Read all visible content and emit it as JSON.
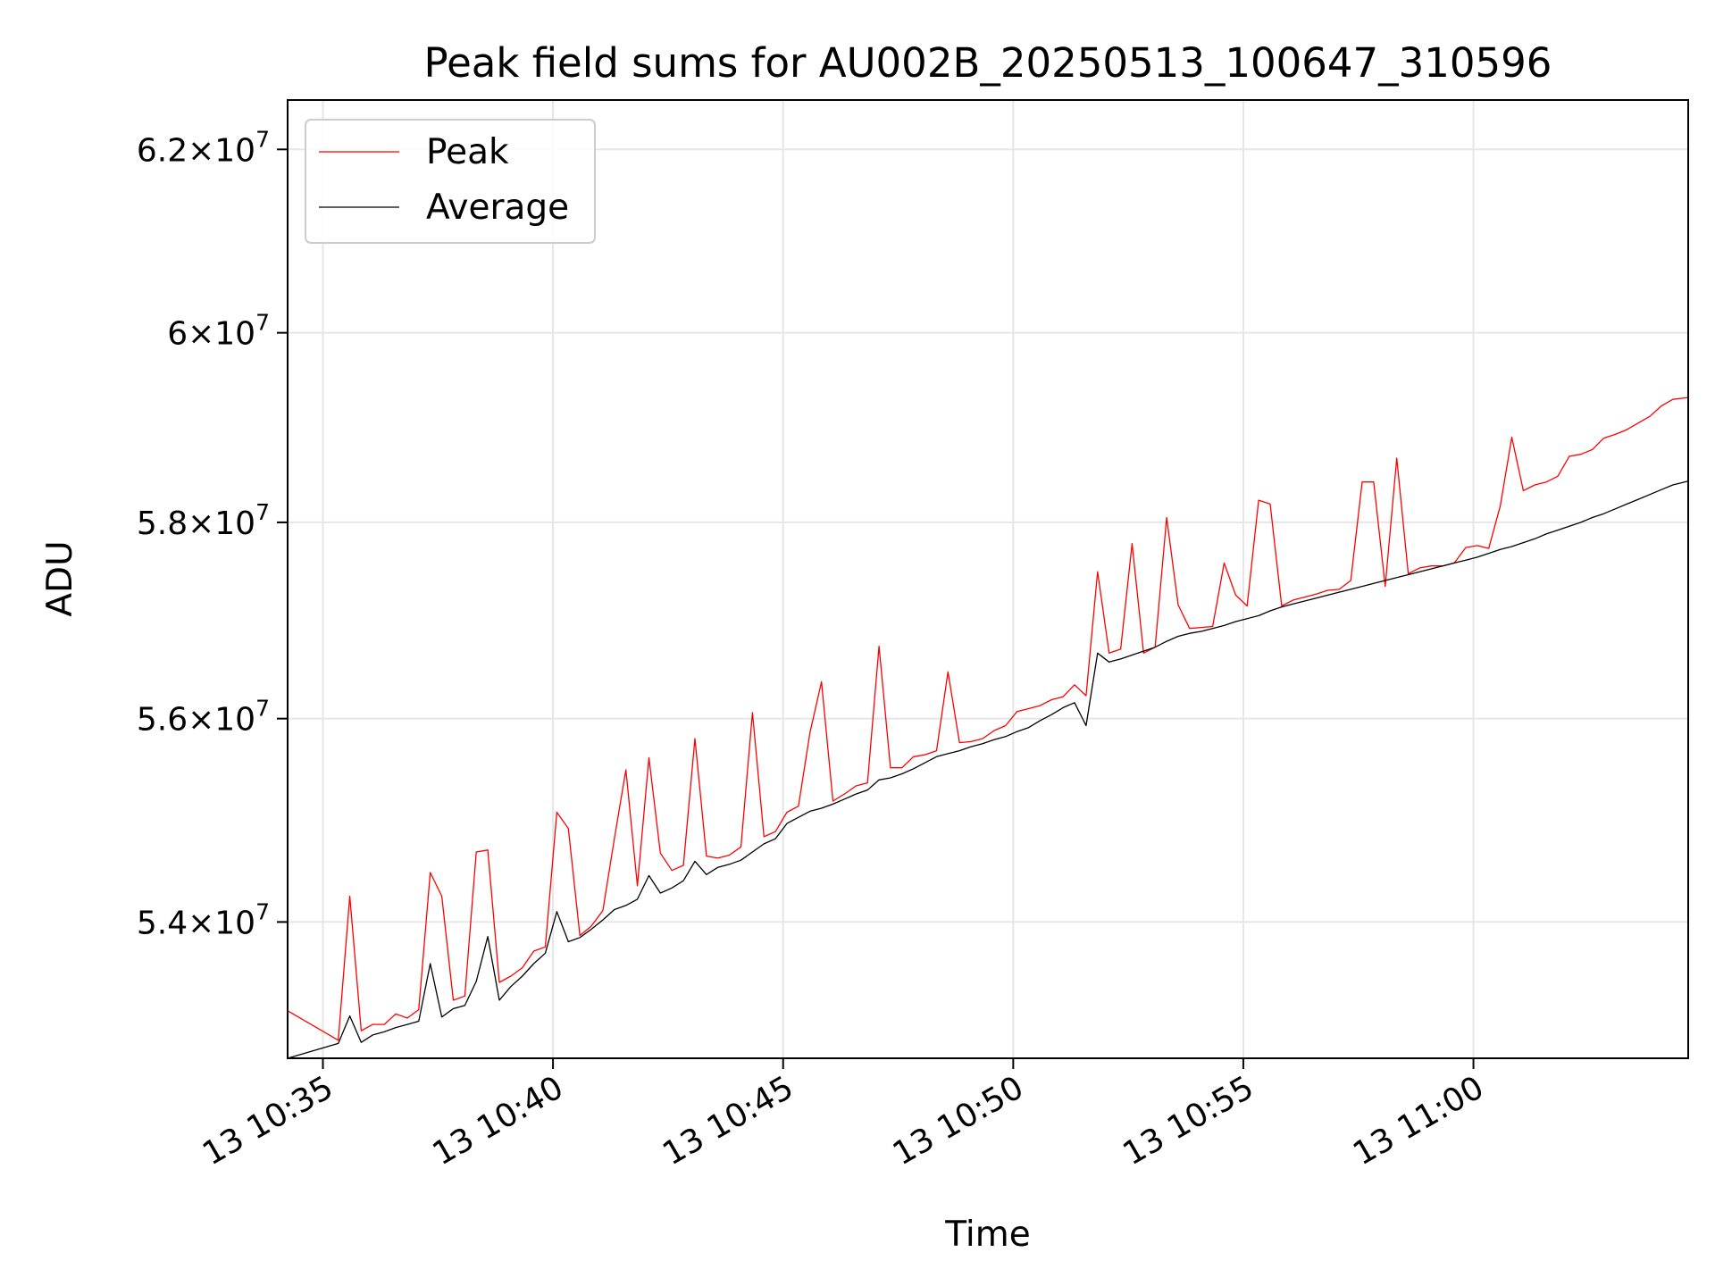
{
  "chart_data": {
    "type": "line",
    "title": "Peak field sums for AU002B_20250513_100647_310596",
    "xlabel": "Time",
    "ylabel": "ADU",
    "xlim": [
      "10:34:14",
      "11:04:40"
    ],
    "ylim": [
      52700000,
      62550000
    ],
    "x_ticks": [
      {
        "t": "10:35:00",
        "label": "13 10:35"
      },
      {
        "t": "10:40:00",
        "label": "13 10:40"
      },
      {
        "t": "10:45:00",
        "label": "13 10:45"
      },
      {
        "t": "10:50:00",
        "label": "13 10:50"
      },
      {
        "t": "10:55:00",
        "label": "13 10:55"
      },
      {
        "t": "11:00:00",
        "label": "13 11:00"
      }
    ],
    "y_ticks": [
      {
        "value": 54000000,
        "mantissa": "5.4",
        "base": "10",
        "exp": "7"
      },
      {
        "value": 56000000,
        "mantissa": "5.6",
        "base": "10",
        "exp": "7"
      },
      {
        "value": 58000000,
        "mantissa": "5.8",
        "base": "10",
        "exp": "7"
      },
      {
        "value": 60000000,
        "mantissa": "6",
        "base": "10",
        "exp": "7"
      },
      {
        "value": 62000000,
        "mantissa": "6.2",
        "base": "10",
        "exp": "7"
      }
    ],
    "y_scale": "log",
    "grid": true,
    "legend_position": "upper-left",
    "series": [
      {
        "name": "Peak",
        "color": "#ff0000",
        "points": [
          [
            "10:34:14",
            53150000
          ],
          [
            "10:35:20",
            52870000
          ],
          [
            "10:35:35",
            54250000
          ],
          [
            "10:35:50",
            52960000
          ],
          [
            "10:36:05",
            53020000
          ],
          [
            "10:36:20",
            53020000
          ],
          [
            "10:36:35",
            53120000
          ],
          [
            "10:36:50",
            53080000
          ],
          [
            "10:37:05",
            53160000
          ],
          [
            "10:37:20",
            54480000
          ],
          [
            "10:37:35",
            54250000
          ],
          [
            "10:37:50",
            53250000
          ],
          [
            "10:38:05",
            53290000
          ],
          [
            "10:38:20",
            54680000
          ],
          [
            "10:38:35",
            54700000
          ],
          [
            "10:38:50",
            53420000
          ],
          [
            "10:39:05",
            53480000
          ],
          [
            "10:39:20",
            53560000
          ],
          [
            "10:39:35",
            53720000
          ],
          [
            "10:39:50",
            53760000
          ],
          [
            "10:40:05",
            55070000
          ],
          [
            "10:40:20",
            54910000
          ],
          [
            "10:40:35",
            53870000
          ],
          [
            "10:40:50",
            53960000
          ],
          [
            "10:41:05",
            54110000
          ],
          [
            "10:41:20",
            54810000
          ],
          [
            "10:41:35",
            55490000
          ],
          [
            "10:41:50",
            54350000
          ],
          [
            "10:42:05",
            55610000
          ],
          [
            "10:42:20",
            54670000
          ],
          [
            "10:42:35",
            54500000
          ],
          [
            "10:42:50",
            54550000
          ],
          [
            "10:43:05",
            55800000
          ],
          [
            "10:43:20",
            54640000
          ],
          [
            "10:43:35",
            54620000
          ],
          [
            "10:43:50",
            54650000
          ],
          [
            "10:44:05",
            54730000
          ],
          [
            "10:44:20",
            56060000
          ],
          [
            "10:44:35",
            54830000
          ],
          [
            "10:44:50",
            54880000
          ],
          [
            "10:45:05",
            55070000
          ],
          [
            "10:45:20",
            55130000
          ],
          [
            "10:45:35",
            55860000
          ],
          [
            "10:45:50",
            56370000
          ],
          [
            "10:46:05",
            55180000
          ],
          [
            "10:46:20",
            55250000
          ],
          [
            "10:46:35",
            55330000
          ],
          [
            "10:46:50",
            55360000
          ],
          [
            "10:47:05",
            56730000
          ],
          [
            "10:47:20",
            55510000
          ],
          [
            "10:47:35",
            55510000
          ],
          [
            "10:47:50",
            55620000
          ],
          [
            "10:48:05",
            55640000
          ],
          [
            "10:48:20",
            55680000
          ],
          [
            "10:48:35",
            56470000
          ],
          [
            "10:48:50",
            55760000
          ],
          [
            "10:49:05",
            55770000
          ],
          [
            "10:49:20",
            55800000
          ],
          [
            "10:49:35",
            55880000
          ],
          [
            "10:49:50",
            55930000
          ],
          [
            "10:50:05",
            56070000
          ],
          [
            "10:50:20",
            56100000
          ],
          [
            "10:50:35",
            56130000
          ],
          [
            "10:50:50",
            56190000
          ],
          [
            "10:51:05",
            56220000
          ],
          [
            "10:51:20",
            56340000
          ],
          [
            "10:51:35",
            56230000
          ],
          [
            "10:51:50",
            57490000
          ],
          [
            "10:52:05",
            56660000
          ],
          [
            "10:52:20",
            56700000
          ],
          [
            "10:52:35",
            57780000
          ],
          [
            "10:52:50",
            56660000
          ],
          [
            "10:53:05",
            56720000
          ],
          [
            "10:53:20",
            58050000
          ],
          [
            "10:53:35",
            57150000
          ],
          [
            "10:53:50",
            56910000
          ],
          [
            "10:54:05",
            56920000
          ],
          [
            "10:54:20",
            56930000
          ],
          [
            "10:54:35",
            57580000
          ],
          [
            "10:54:50",
            57250000
          ],
          [
            "10:55:05",
            57140000
          ],
          [
            "10:55:20",
            58230000
          ],
          [
            "10:55:35",
            58190000
          ],
          [
            "10:55:50",
            57140000
          ],
          [
            "10:56:05",
            57200000
          ],
          [
            "10:56:20",
            57230000
          ],
          [
            "10:56:35",
            57260000
          ],
          [
            "10:56:50",
            57300000
          ],
          [
            "10:57:05",
            57310000
          ],
          [
            "10:57:20",
            57400000
          ],
          [
            "10:57:35",
            58420000
          ],
          [
            "10:57:50",
            58420000
          ],
          [
            "10:58:05",
            57340000
          ],
          [
            "10:58:20",
            58670000
          ],
          [
            "10:58:35",
            57470000
          ],
          [
            "10:58:50",
            57530000
          ],
          [
            "10:59:05",
            57550000
          ],
          [
            "10:59:20",
            57550000
          ],
          [
            "10:59:35",
            57580000
          ],
          [
            "10:59:50",
            57740000
          ],
          [
            "11:00:05",
            57760000
          ],
          [
            "11:00:20",
            57730000
          ],
          [
            "11:00:35",
            58170000
          ],
          [
            "11:00:50",
            58890000
          ],
          [
            "11:01:05",
            58330000
          ],
          [
            "11:01:20",
            58390000
          ],
          [
            "11:01:35",
            58420000
          ],
          [
            "11:01:50",
            58480000
          ],
          [
            "11:02:05",
            58690000
          ],
          [
            "11:02:20",
            58710000
          ],
          [
            "11:02:35",
            58760000
          ],
          [
            "11:02:50",
            58880000
          ],
          [
            "11:03:05",
            58920000
          ],
          [
            "11:03:20",
            58970000
          ],
          [
            "11:03:35",
            59040000
          ],
          [
            "11:03:50",
            59110000
          ],
          [
            "11:04:05",
            59220000
          ],
          [
            "11:04:20",
            59290000
          ],
          [
            "11:04:40",
            59310000
          ]
        ]
      },
      {
        "name": "Average",
        "color": "#000000",
        "points": [
          [
            "10:34:14",
            52700000
          ],
          [
            "10:35:20",
            52840000
          ],
          [
            "10:35:35",
            53100000
          ],
          [
            "10:35:50",
            52850000
          ],
          [
            "10:36:05",
            52920000
          ],
          [
            "10:36:20",
            52950000
          ],
          [
            "10:36:35",
            52990000
          ],
          [
            "10:36:50",
            53020000
          ],
          [
            "10:37:05",
            53050000
          ],
          [
            "10:37:20",
            53600000
          ],
          [
            "10:37:35",
            53090000
          ],
          [
            "10:37:50",
            53170000
          ],
          [
            "10:38:05",
            53200000
          ],
          [
            "10:38:20",
            53430000
          ],
          [
            "10:38:35",
            53860000
          ],
          [
            "10:38:50",
            53250000
          ],
          [
            "10:39:05",
            53380000
          ],
          [
            "10:39:20",
            53480000
          ],
          [
            "10:39:35",
            53600000
          ],
          [
            "10:39:50",
            53700000
          ],
          [
            "10:40:05",
            54100000
          ],
          [
            "10:40:20",
            53810000
          ],
          [
            "10:40:35",
            53850000
          ],
          [
            "10:40:50",
            53930000
          ],
          [
            "10:41:05",
            54020000
          ],
          [
            "10:41:20",
            54120000
          ],
          [
            "10:41:35",
            54160000
          ],
          [
            "10:41:50",
            54220000
          ],
          [
            "10:42:05",
            54450000
          ],
          [
            "10:42:20",
            54280000
          ],
          [
            "10:42:35",
            54330000
          ],
          [
            "10:42:50",
            54400000
          ],
          [
            "10:43:05",
            54590000
          ],
          [
            "10:43:20",
            54460000
          ],
          [
            "10:43:35",
            54530000
          ],
          [
            "10:43:50",
            54560000
          ],
          [
            "10:44:05",
            54600000
          ],
          [
            "10:44:20",
            54680000
          ],
          [
            "10:44:35",
            54760000
          ],
          [
            "10:44:50",
            54810000
          ],
          [
            "10:45:05",
            54960000
          ],
          [
            "10:45:20",
            55020000
          ],
          [
            "10:45:35",
            55080000
          ],
          [
            "10:45:50",
            55110000
          ],
          [
            "10:46:05",
            55150000
          ],
          [
            "10:46:20",
            55200000
          ],
          [
            "10:46:35",
            55250000
          ],
          [
            "10:46:50",
            55290000
          ],
          [
            "10:47:05",
            55390000
          ],
          [
            "10:47:20",
            55410000
          ],
          [
            "10:47:35",
            55450000
          ],
          [
            "10:47:50",
            55500000
          ],
          [
            "10:48:05",
            55560000
          ],
          [
            "10:48:20",
            55620000
          ],
          [
            "10:48:35",
            55650000
          ],
          [
            "10:48:50",
            55680000
          ],
          [
            "10:49:05",
            55720000
          ],
          [
            "10:49:20",
            55750000
          ],
          [
            "10:49:35",
            55790000
          ],
          [
            "10:49:50",
            55820000
          ],
          [
            "10:50:05",
            55870000
          ],
          [
            "10:50:20",
            55910000
          ],
          [
            "10:50:35",
            55980000
          ],
          [
            "10:50:50",
            56040000
          ],
          [
            "10:51:05",
            56110000
          ],
          [
            "10:51:20",
            56160000
          ],
          [
            "10:51:35",
            55930000
          ],
          [
            "10:51:50",
            56660000
          ],
          [
            "10:52:05",
            56570000
          ],
          [
            "10:52:20",
            56600000
          ],
          [
            "10:52:35",
            56640000
          ],
          [
            "10:52:50",
            56680000
          ],
          [
            "10:53:05",
            56720000
          ],
          [
            "10:53:20",
            56780000
          ],
          [
            "10:53:35",
            56830000
          ],
          [
            "10:53:50",
            56860000
          ],
          [
            "10:54:05",
            56880000
          ],
          [
            "10:54:20",
            56910000
          ],
          [
            "10:54:35",
            56940000
          ],
          [
            "10:54:50",
            56980000
          ],
          [
            "10:55:05",
            57010000
          ],
          [
            "10:55:20",
            57040000
          ],
          [
            "10:55:35",
            57090000
          ],
          [
            "10:55:50",
            57130000
          ],
          [
            "10:56:05",
            57160000
          ],
          [
            "10:56:20",
            57190000
          ],
          [
            "10:56:35",
            57220000
          ],
          [
            "10:56:50",
            57250000
          ],
          [
            "10:57:05",
            57280000
          ],
          [
            "10:57:20",
            57310000
          ],
          [
            "10:57:35",
            57340000
          ],
          [
            "10:57:50",
            57370000
          ],
          [
            "10:58:05",
            57400000
          ],
          [
            "10:58:20",
            57430000
          ],
          [
            "10:58:35",
            57460000
          ],
          [
            "10:58:50",
            57490000
          ],
          [
            "10:59:05",
            57520000
          ],
          [
            "10:59:20",
            57550000
          ],
          [
            "10:59:35",
            57580000
          ],
          [
            "10:59:50",
            57610000
          ],
          [
            "11:00:05",
            57640000
          ],
          [
            "11:00:20",
            57680000
          ],
          [
            "11:00:35",
            57720000
          ],
          [
            "11:00:50",
            57750000
          ],
          [
            "11:01:05",
            57790000
          ],
          [
            "11:01:20",
            57830000
          ],
          [
            "11:01:35",
            57880000
          ],
          [
            "11:01:50",
            57920000
          ],
          [
            "11:02:05",
            57960000
          ],
          [
            "11:02:20",
            58000000
          ],
          [
            "11:02:35",
            58050000
          ],
          [
            "11:02:50",
            58090000
          ],
          [
            "11:03:05",
            58140000
          ],
          [
            "11:03:20",
            58190000
          ],
          [
            "11:03:35",
            58240000
          ],
          [
            "11:03:50",
            58290000
          ],
          [
            "11:04:05",
            58340000
          ],
          [
            "11:04:20",
            58390000
          ],
          [
            "11:04:40",
            58430000
          ]
        ]
      }
    ]
  }
}
